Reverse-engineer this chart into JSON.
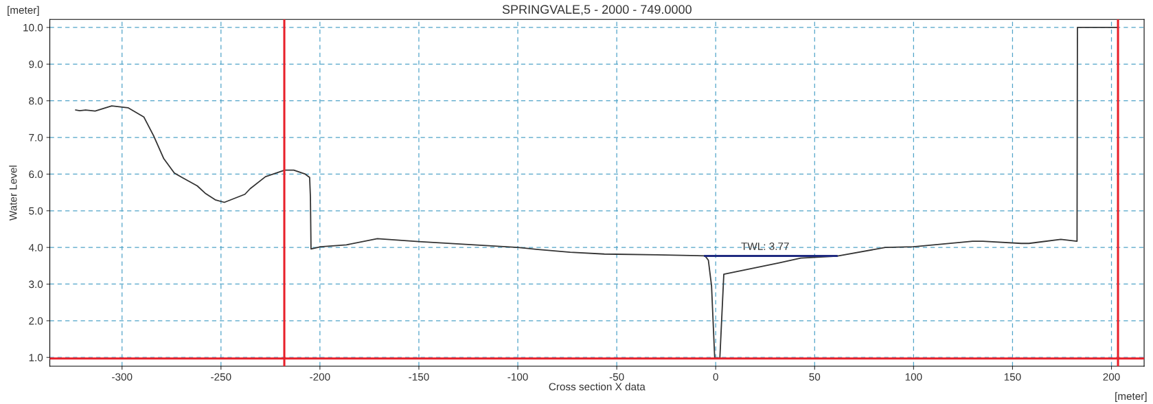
{
  "chart_data": {
    "type": "line",
    "title": "SPRINGVALE,5 - 2000 - 749.0000",
    "xlabel": "Cross section X data",
    "ylabel": "Water Level",
    "series": [
      {
        "color": "#333333",
        "x": [
          -323.4,
          -321.4,
          -318.4,
          -313.6,
          -305.2,
          -297,
          -289,
          -284,
          -279,
          -273.6,
          -269.7,
          -262,
          -258,
          -252.9,
          -248.3,
          -237.9,
          -235.3,
          -227.5,
          -217.8,
          -213.2,
          -207.4,
          -205.2,
          -204.8,
          -204.5,
          -199.6,
          -186.6,
          -171,
          -150,
          -100,
          -90.7,
          -73.5,
          -56.3,
          -29.9,
          -5.4,
          -3.7,
          -2.1,
          -0.5,
          2.1,
          4.1,
          32,
          43,
          61.1,
          85.7,
          100,
          129.8,
          135,
          154.4,
          158.3,
          174.4,
          182.6,
          182.8,
          202.9
        ],
        "values": [
          7.75,
          7.73,
          7.75,
          7.72,
          7.86,
          7.81,
          7.56,
          7.04,
          6.43,
          6.03,
          5.91,
          5.68,
          5.48,
          5.3,
          5.23,
          5.45,
          5.6,
          5.93,
          6.11,
          6.11,
          6.0,
          5.91,
          5.37,
          3.96,
          4.02,
          4.07,
          4.24,
          4.16,
          4.0,
          3.95,
          3.87,
          3.82,
          3.8,
          3.77,
          3.65,
          2.95,
          0.98,
          0.98,
          3.27,
          3.58,
          3.71,
          3.76,
          4.0,
          4.02,
          4.17,
          4.17,
          4.11,
          4.11,
          4.22,
          4.17,
          10.0,
          10.0
        ]
      },
      {
        "color": "#1f2a80",
        "x": [
          -5.4,
          61.1
        ],
        "values": [
          3.77,
          3.77
        ]
      }
    ],
    "xlim": [
      -336.5,
      216.5
    ],
    "xticks": [
      -300,
      -250,
      -200,
      -150,
      -100,
      -50,
      0,
      50,
      100,
      150,
      200
    ],
    "ylim": [
      0.76,
      10.22
    ],
    "yticks": [
      {
        "value": 1,
        "label": "1.0"
      },
      {
        "value": 2,
        "label": "2.0"
      },
      {
        "value": 3,
        "label": "3.0"
      },
      {
        "value": 4,
        "label": "4.0"
      },
      {
        "value": 5,
        "label": "5.0"
      },
      {
        "value": 6,
        "label": "6.0"
      },
      {
        "value": 7,
        "label": "7.0"
      },
      {
        "value": 8,
        "label": "8.0"
      },
      {
        "value": 9,
        "label": "9.0"
      },
      {
        "value": 10,
        "label": "10.0"
      }
    ],
    "ref_lines": [
      {
        "axis": "x",
        "value": -218,
        "color": "#e8202a"
      },
      {
        "axis": "x",
        "value": 203.3,
        "color": "#e8202a"
      },
      {
        "axis": "y",
        "value": 0.97,
        "color": "#e8202a"
      }
    ],
    "annotations": [
      "[meter]",
      "[meter]",
      {
        "text": "TWL: 3.77",
        "x": 25,
        "y": 3.77
      }
    ],
    "grid": true,
    "legend": false
  }
}
